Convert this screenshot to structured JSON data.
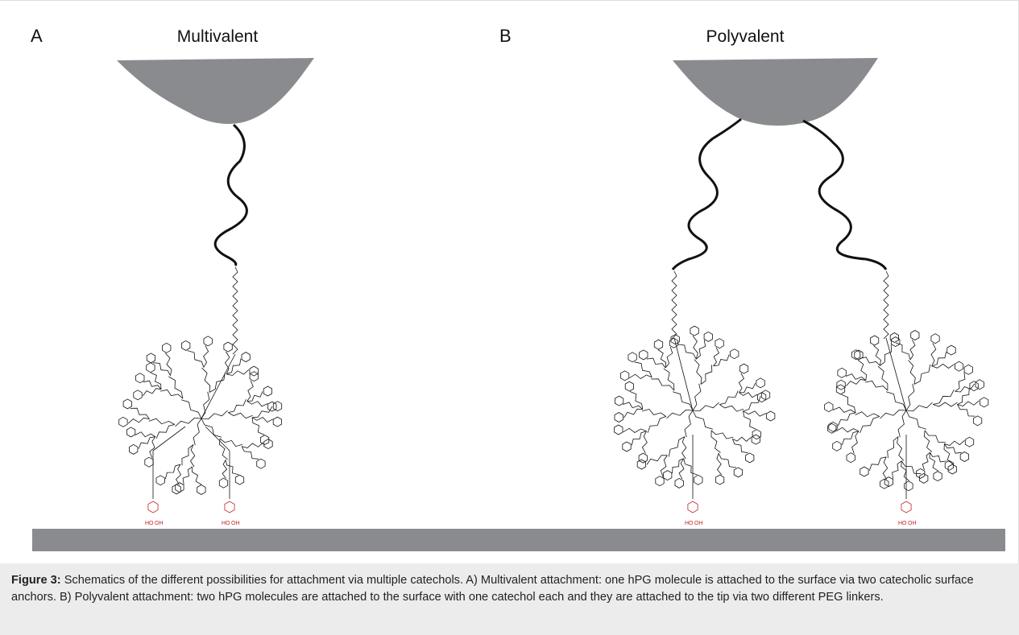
{
  "panels": [
    {
      "label": "A",
      "title": "Multivalent",
      "anchor_labels": [
        "HO",
        "OH",
        "HO",
        "OH"
      ]
    },
    {
      "label": "B",
      "title": "Polyvalent",
      "anchor_labels": [
        "HO",
        "OH",
        "HO",
        "OH"
      ]
    }
  ],
  "caption": {
    "label": "Figure 3:",
    "text": "Schematics of the different possibilities for attachment via multiple catechols. A) Multivalent attachment: one hPG molecule is attached to the surface via two catecholic surface anchors. B) Polyvalent attachment: two hPG molecules are attached to the surface with one catechol each and they are attached to the tip via two different PEG linkers."
  }
}
